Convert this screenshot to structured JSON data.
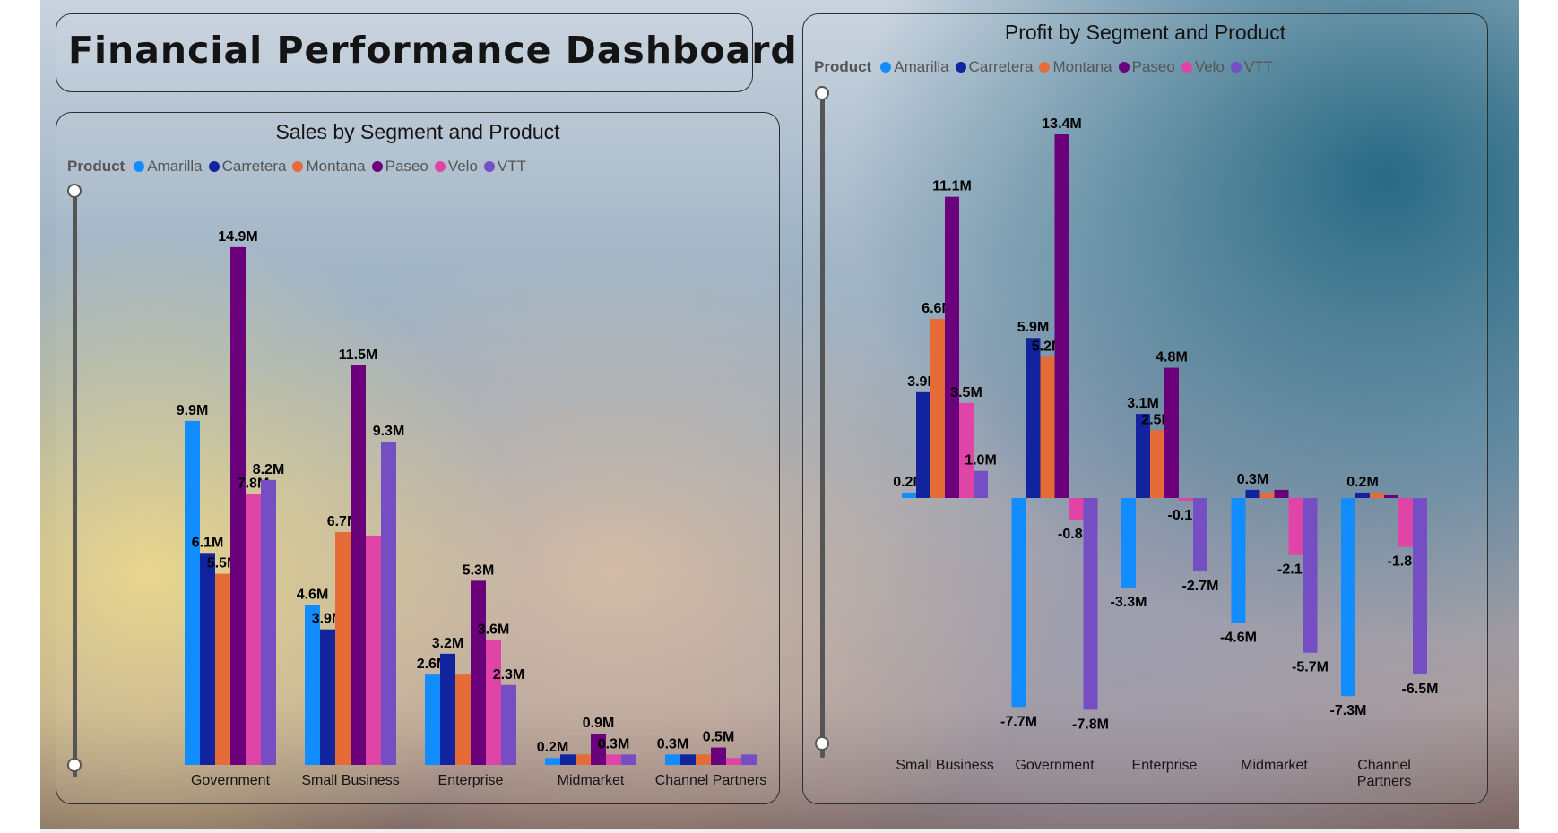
{
  "dashboard": {
    "title": "Financial Performance Dashboard"
  },
  "legend": {
    "label": "Product",
    "items": [
      {
        "name": "Amarilla",
        "color": "#118DFF"
      },
      {
        "name": "Carretera",
        "color": "#12239E"
      },
      {
        "name": "Montana",
        "color": "#E66C37"
      },
      {
        "name": "Paseo",
        "color": "#6B007B"
      },
      {
        "name": "Velo",
        "color": "#E044A7"
      },
      {
        "name": "VTT",
        "color": "#744EC2"
      }
    ]
  },
  "chart_data": [
    {
      "type": "bar",
      "title": "Sales by Segment and Product",
      "legend_title": "Product",
      "categories": [
        "Government",
        "Small Business",
        "Enterprise",
        "Midmarket",
        "Channel Partners"
      ],
      "unit": "M",
      "series": [
        {
          "name": "Amarilla",
          "values": [
            9.9,
            4.6,
            2.6,
            0.2,
            0.3
          ]
        },
        {
          "name": "Carretera",
          "values": [
            6.1,
            3.9,
            3.2,
            0.3,
            0.3
          ]
        },
        {
          "name": "Montana",
          "values": [
            5.5,
            6.7,
            2.6,
            0.3,
            0.3
          ]
        },
        {
          "name": "Paseo",
          "values": [
            14.9,
            11.5,
            5.3,
            0.9,
            0.5
          ]
        },
        {
          "name": "Velo",
          "values": [
            7.8,
            6.6,
            3.6,
            0.3,
            0.2
          ]
        },
        {
          "name": "VTT",
          "values": [
            8.2,
            9.3,
            2.3,
            0.3,
            0.3
          ]
        }
      ],
      "labels": [
        [
          "9.9M",
          "4.6M",
          "2.6M",
          "0.2M",
          "0.3M"
        ],
        [
          "6.1M",
          "3.9M",
          "3.2M",
          "",
          ""
        ],
        [
          "5.5M",
          "6.7M",
          "",
          "",
          ""
        ],
        [
          "14.9M",
          "11.5M",
          "5.3M",
          "0.9M",
          "0.5M"
        ],
        [
          "7.8M",
          "",
          "3.6M",
          "0.3M",
          ""
        ],
        [
          "8.2M",
          "9.3M",
          "2.3M",
          "",
          ""
        ]
      ],
      "ylim": [
        0,
        15
      ],
      "grid": false,
      "legend_position": "top-left"
    },
    {
      "type": "bar",
      "title": "Profit by Segment and Product",
      "legend_title": "Product",
      "categories": [
        "Small Business",
        "Government",
        "Enterprise",
        "Midmarket",
        "Channel Partners"
      ],
      "unit": "M",
      "series": [
        {
          "name": "Amarilla",
          "values": [
            0.2,
            -7.7,
            -3.3,
            -4.6,
            -7.3
          ]
        },
        {
          "name": "Carretera",
          "values": [
            3.9,
            5.9,
            3.1,
            0.3,
            0.2
          ]
        },
        {
          "name": "Montana",
          "values": [
            6.6,
            5.2,
            2.5,
            0.2,
            0.2
          ]
        },
        {
          "name": "Paseo",
          "values": [
            11.1,
            13.4,
            4.8,
            0.3,
            0.1
          ]
        },
        {
          "name": "Velo",
          "values": [
            3.5,
            -0.8,
            -0.1,
            -2.1,
            -1.8
          ]
        },
        {
          "name": "VTT",
          "values": [
            1.0,
            -7.8,
            -2.7,
            -5.7,
            -6.5
          ]
        }
      ],
      "labels": [
        [
          "0.2M",
          "-7.7M",
          "-3.3M",
          "-4.6M",
          "-7.3M"
        ],
        [
          "3.9M",
          "5.9M",
          "3.1M",
          "0.3M",
          "0.2M"
        ],
        [
          "6.6M",
          "5.2M",
          "2.5M",
          "",
          ""
        ],
        [
          "11.1M",
          "13.4M",
          "4.8M",
          "",
          ""
        ],
        [
          "3.5M",
          "-0.8M",
          "-0.1M",
          "-2.1M",
          "-1.8M"
        ],
        [
          "1.0M",
          "-7.8M",
          "-2.7M",
          "-5.7M",
          "-6.5M"
        ]
      ],
      "ylim": [
        -8,
        14
      ],
      "grid": false,
      "legend_position": "top-left"
    }
  ]
}
